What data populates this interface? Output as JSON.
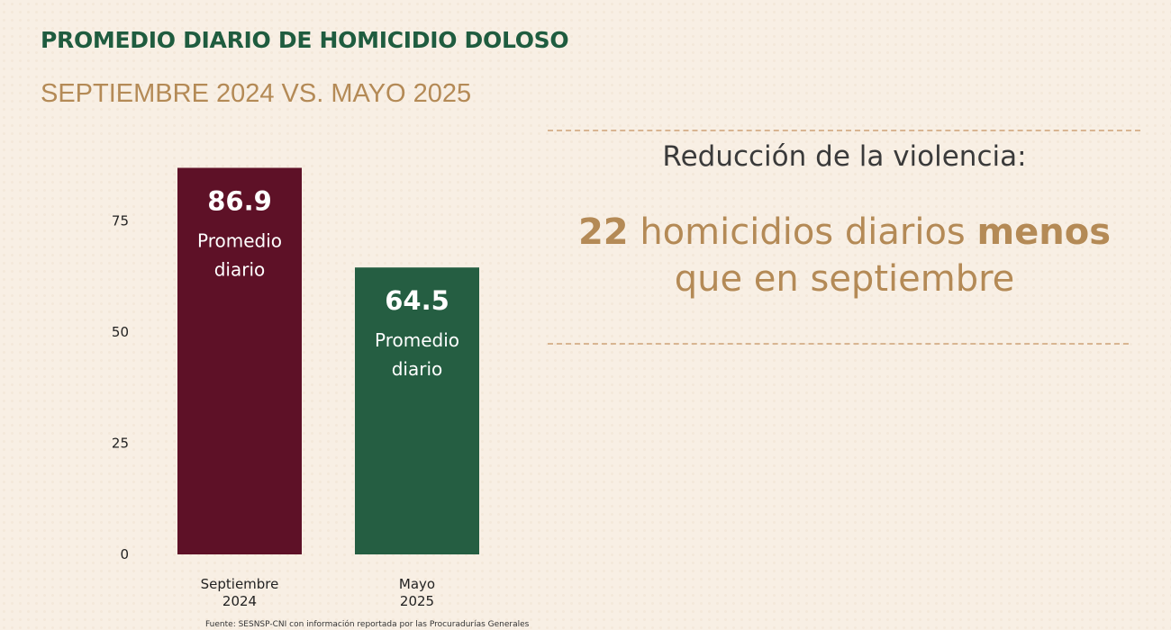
{
  "title": "PROMEDIO DIARIO DE HOMICIDIO DOLOSO",
  "subtitle": "SEPTIEMBRE 2024 VS. MAYO 2025",
  "colors": {
    "title": "#1f5c3f",
    "subtitle": "#b48a56",
    "bar_september": "#5e1127",
    "bar_may": "#255e42",
    "accent": "#b48a56",
    "divider": "#d8b592"
  },
  "chart_data": {
    "type": "bar",
    "categories": [
      [
        "Septiembre",
        "2024"
      ],
      [
        "Mayo",
        "2025"
      ]
    ],
    "values": [
      86.9,
      64.5
    ],
    "value_labels": [
      "86.9",
      "64.5"
    ],
    "bar_text": [
      "Promedio",
      "diario"
    ],
    "y_ticks": [
      0,
      25,
      50,
      75
    ],
    "ylim": [
      0,
      87
    ],
    "grid": false,
    "title": "PROMEDIO DIARIO DE HOMICIDIO DOLOSO",
    "subtitle": "SEPTIEMBRE 2024 VS. MAYO 2025"
  },
  "source": "Fuente: SESNSP-CNI con información reportada por las Procuradurías Generales",
  "highlight": {
    "headline": "Reducción de la violencia:",
    "number": "22",
    "text_a": " homicidios diarios ",
    "emphasis": "menos",
    "line2": "que en septiembre"
  }
}
